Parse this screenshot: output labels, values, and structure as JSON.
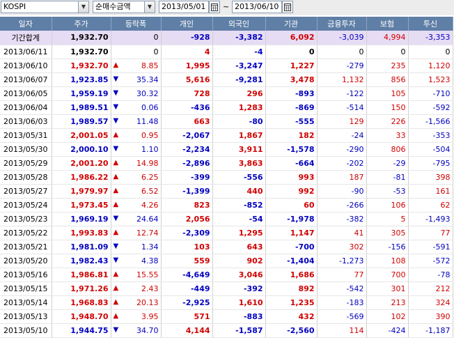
{
  "toolbar": {
    "market": "KOSPI",
    "metric": "순매수금액",
    "start_date": "2013/05/01",
    "end_date": "2013/06/10",
    "tilde": "~"
  },
  "columns": [
    "일자",
    "주가",
    "등락폭",
    "개인",
    "외국인",
    "기관",
    "금융투자",
    "보험",
    "투신"
  ],
  "total": {
    "label": "기간합계",
    "price": "1,932.70",
    "change": "0",
    "individual": "-928",
    "foreign": "-3,382",
    "institution": "6,092",
    "fin_invest": "-3,039",
    "insurance": "4,994",
    "trust": "-3,353"
  },
  "rows": [
    {
      "date": "2013/06/11",
      "price": "1,932.70",
      "dir": "",
      "change": "0",
      "individual": "4",
      "foreign": "-4",
      "institution": "0",
      "fin_invest": "0",
      "insurance": "0",
      "trust": "0"
    },
    {
      "date": "2013/06/10",
      "price": "1,932.70",
      "dir": "up",
      "change": "8.85",
      "individual": "1,995",
      "foreign": "-3,247",
      "institution": "1,227",
      "fin_invest": "-279",
      "insurance": "235",
      "trust": "1,120"
    },
    {
      "date": "2013/06/07",
      "price": "1,923.85",
      "dir": "down",
      "change": "35.34",
      "individual": "5,616",
      "foreign": "-9,281",
      "institution": "3,478",
      "fin_invest": "1,132",
      "insurance": "856",
      "trust": "1,523"
    },
    {
      "date": "2013/06/05",
      "price": "1,959.19",
      "dir": "down",
      "change": "30.32",
      "individual": "728",
      "foreign": "296",
      "institution": "-893",
      "fin_invest": "-122",
      "insurance": "105",
      "trust": "-710"
    },
    {
      "date": "2013/06/04",
      "price": "1,989.51",
      "dir": "down",
      "change": "0.06",
      "individual": "-436",
      "foreign": "1,283",
      "institution": "-869",
      "fin_invest": "-514",
      "insurance": "150",
      "trust": "-592"
    },
    {
      "date": "2013/06/03",
      "price": "1,989.57",
      "dir": "down",
      "change": "11.48",
      "individual": "663",
      "foreign": "-80",
      "institution": "-555",
      "fin_invest": "129",
      "insurance": "226",
      "trust": "-1,566"
    },
    {
      "date": "2013/05/31",
      "price": "2,001.05",
      "dir": "up",
      "change": "0.95",
      "individual": "-2,067",
      "foreign": "1,867",
      "institution": "182",
      "fin_invest": "-24",
      "insurance": "33",
      "trust": "-353"
    },
    {
      "date": "2013/05/30",
      "price": "2,000.10",
      "dir": "down",
      "change": "1.10",
      "individual": "-2,234",
      "foreign": "3,911",
      "institution": "-1,578",
      "fin_invest": "-290",
      "insurance": "806",
      "trust": "-504"
    },
    {
      "date": "2013/05/29",
      "price": "2,001.20",
      "dir": "up",
      "change": "14.98",
      "individual": "-2,896",
      "foreign": "3,863",
      "institution": "-664",
      "fin_invest": "-202",
      "insurance": "-29",
      "trust": "-795"
    },
    {
      "date": "2013/05/28",
      "price": "1,986.22",
      "dir": "up",
      "change": "6.25",
      "individual": "-399",
      "foreign": "-556",
      "institution": "993",
      "fin_invest": "187",
      "insurance": "-81",
      "trust": "398"
    },
    {
      "date": "2013/05/27",
      "price": "1,979.97",
      "dir": "up",
      "change": "6.52",
      "individual": "-1,399",
      "foreign": "440",
      "institution": "992",
      "fin_invest": "-90",
      "insurance": "-53",
      "trust": "161"
    },
    {
      "date": "2013/05/24",
      "price": "1,973.45",
      "dir": "up",
      "change": "4.26",
      "individual": "823",
      "foreign": "-852",
      "institution": "60",
      "fin_invest": "-266",
      "insurance": "106",
      "trust": "62"
    },
    {
      "date": "2013/05/23",
      "price": "1,969.19",
      "dir": "down",
      "change": "24.64",
      "individual": "2,056",
      "foreign": "-54",
      "institution": "-1,978",
      "fin_invest": "-382",
      "insurance": "5",
      "trust": "-1,493"
    },
    {
      "date": "2013/05/22",
      "price": "1,993.83",
      "dir": "up",
      "change": "12.74",
      "individual": "-2,309",
      "foreign": "1,295",
      "institution": "1,147",
      "fin_invest": "41",
      "insurance": "305",
      "trust": "77"
    },
    {
      "date": "2013/05/21",
      "price": "1,981.09",
      "dir": "down",
      "change": "1.34",
      "individual": "103",
      "foreign": "643",
      "institution": "-700",
      "fin_invest": "302",
      "insurance": "-156",
      "trust": "-591"
    },
    {
      "date": "2013/05/20",
      "price": "1,982.43",
      "dir": "down",
      "change": "4.38",
      "individual": "559",
      "foreign": "902",
      "institution": "-1,404",
      "fin_invest": "-1,273",
      "insurance": "108",
      "trust": "-572"
    },
    {
      "date": "2013/05/16",
      "price": "1,986.81",
      "dir": "up",
      "change": "15.55",
      "individual": "-4,649",
      "foreign": "3,046",
      "institution": "1,686",
      "fin_invest": "77",
      "insurance": "700",
      "trust": "-78"
    },
    {
      "date": "2013/05/15",
      "price": "1,971.26",
      "dir": "up",
      "change": "2.43",
      "individual": "-449",
      "foreign": "-392",
      "institution": "892",
      "fin_invest": "-542",
      "insurance": "301",
      "trust": "212"
    },
    {
      "date": "2013/05/14",
      "price": "1,968.83",
      "dir": "up",
      "change": "20.13",
      "individual": "-2,925",
      "foreign": "1,610",
      "institution": "1,235",
      "fin_invest": "-183",
      "insurance": "213",
      "trust": "324"
    },
    {
      "date": "2013/05/13",
      "price": "1,948.70",
      "dir": "up",
      "change": "3.95",
      "individual": "571",
      "foreign": "-883",
      "institution": "432",
      "fin_invest": "-569",
      "insurance": "102",
      "trust": "390"
    },
    {
      "date": "2013/05/10",
      "price": "1,944.75",
      "dir": "down",
      "change": "34.70",
      "individual": "4,144",
      "foreign": "-1,587",
      "institution": "-2,560",
      "fin_invest": "114",
      "insurance": "-424",
      "trust": "-1,187"
    }
  ],
  "colors": {
    "up": "#d00000",
    "down": "#0000c0",
    "header": "#5f7fa6",
    "total_row": "#e6dcf4"
  },
  "icons": {
    "up": "▲",
    "down": "▼",
    "dropdown": "▼",
    "calendar": "calendar-icon"
  }
}
